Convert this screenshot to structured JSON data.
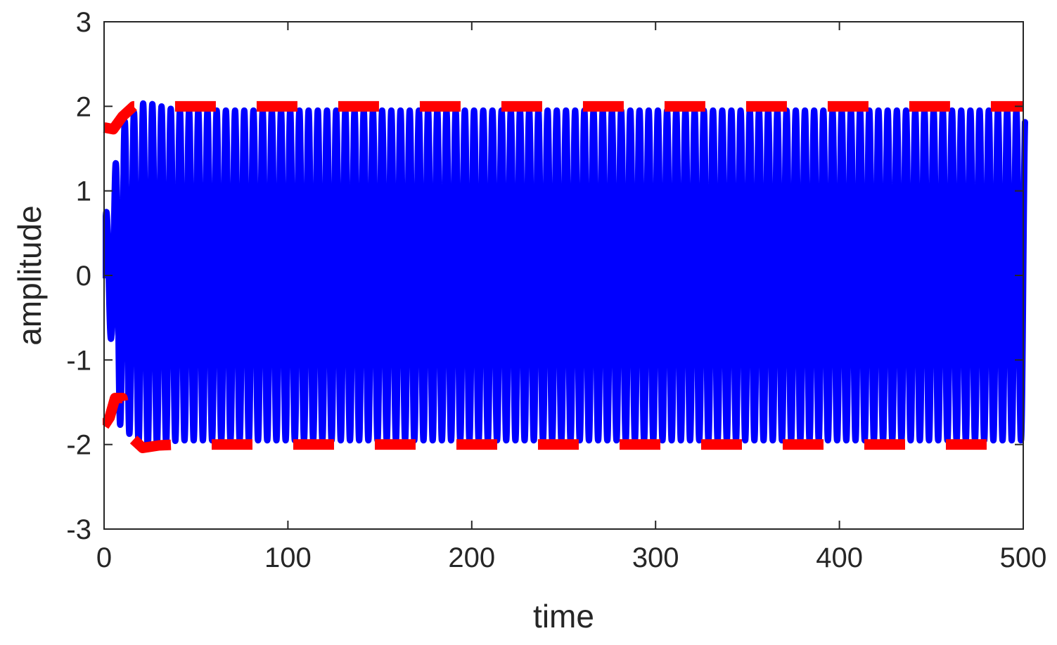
{
  "chart_data": {
    "type": "line",
    "title": "",
    "xlabel": "time",
    "ylabel": "amplitude",
    "xlim": [
      0,
      500
    ],
    "ylim": [
      -3,
      3
    ],
    "xticks": [
      0,
      100,
      200,
      300,
      400,
      500
    ],
    "yticks": [
      -3,
      -2,
      -1,
      0,
      1,
      2,
      3
    ],
    "xtick_labels": [
      "0",
      "100",
      "200",
      "300",
      "400",
      "500"
    ],
    "ytick_labels": [
      "-3",
      "-2",
      "-1",
      "0",
      "1",
      "2",
      "3"
    ],
    "grid": false,
    "legend": "none",
    "series": [
      {
        "kind": "oscillation",
        "color": "#0000ff",
        "line_style": "solid",
        "x_start": 0,
        "x_end": 501,
        "steady_amplitude": 1.95,
        "peak_amplitude": 2.05,
        "cycles_per_unit_time": 0.2
      },
      {
        "kind": "upper-envelope",
        "color": "#ff0000",
        "line_style": "dashed",
        "points": [
          [
            0,
            1.75
          ],
          [
            5,
            1.73
          ],
          [
            10,
            1.88
          ],
          [
            16,
            2.0
          ],
          [
            500,
            2.0
          ]
        ]
      },
      {
        "kind": "lower-envelope",
        "color": "#ff0000",
        "line_style": "dashed",
        "points": [
          [
            0,
            -1.78
          ],
          [
            3,
            -1.68
          ],
          [
            6,
            -1.45
          ],
          [
            10,
            -1.45
          ],
          [
            14,
            -1.9
          ],
          [
            21,
            -2.04
          ],
          [
            30,
            -2.01
          ],
          [
            40,
            -2.0
          ],
          [
            500,
            -2.0
          ]
        ]
      }
    ]
  }
}
